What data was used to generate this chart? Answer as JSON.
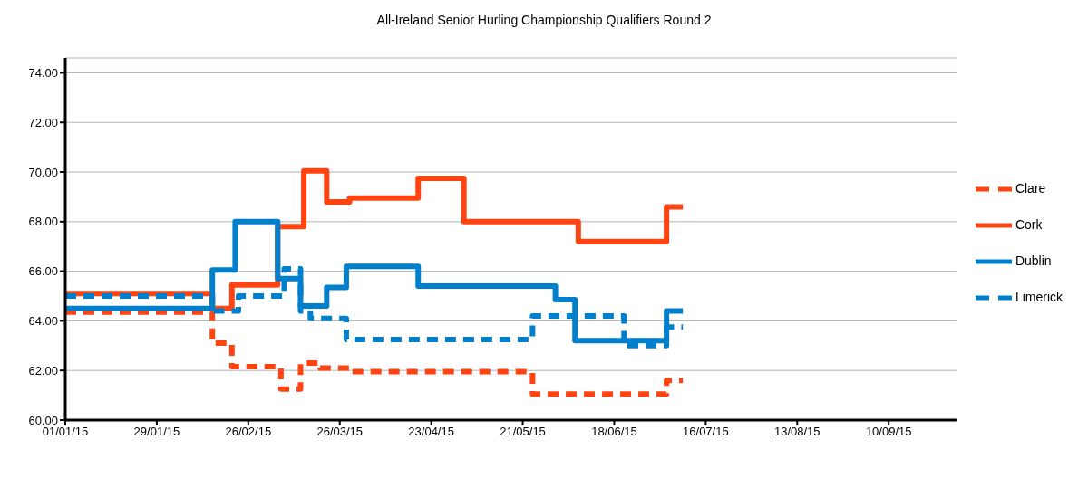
{
  "chart_data": {
    "type": "step",
    "title": "All-Ireland Senior Hurling Championship Qualifiers Round 2",
    "xlim": [
      "2015-01-01",
      "2015-10-01"
    ],
    "xticks": [
      {
        "value": "2015-01-01",
        "label": "01/01/15"
      },
      {
        "value": "2015-01-29",
        "label": "29/01/15"
      },
      {
        "value": "2015-02-26",
        "label": "26/02/15"
      },
      {
        "value": "2015-03-26",
        "label": "26/03/15"
      },
      {
        "value": "2015-04-23",
        "label": "23/04/15"
      },
      {
        "value": "2015-05-21",
        "label": "21/05/15"
      },
      {
        "value": "2015-06-18",
        "label": "18/06/15"
      },
      {
        "value": "2015-07-16",
        "label": "16/07/15"
      },
      {
        "value": "2015-08-13",
        "label": "13/08/15"
      },
      {
        "value": "2015-09-10",
        "label": "10/09/15"
      }
    ],
    "ylim": [
      60,
      74.6
    ],
    "yticks": [
      {
        "value": 60,
        "label": "60.00"
      },
      {
        "value": 62,
        "label": "62.00"
      },
      {
        "value": 64,
        "label": "64.00"
      },
      {
        "value": 66,
        "label": "66.00"
      },
      {
        "value": 68,
        "label": "68.00"
      },
      {
        "value": 70,
        "label": "70.00"
      },
      {
        "value": 72,
        "label": "72.00"
      },
      {
        "value": 74,
        "label": "74.00"
      }
    ],
    "grid": "y",
    "legend": "right",
    "marker": "none",
    "series": [
      {
        "name": "Clare",
        "color": "#ff4411",
        "line_style": "dashed",
        "x": [
          "2015-01-01",
          "2015-02-15",
          "2015-02-21",
          "2015-03-08",
          "2015-03-14",
          "2015-03-20",
          "2015-03-29",
          "2015-05-24",
          "2015-07-04",
          "2015-07-09"
        ],
        "values": [
          64.35,
          63.1,
          62.15,
          61.25,
          62.3,
          62.1,
          61.95,
          61.05,
          61.6,
          61.6
        ]
      },
      {
        "name": "Cork",
        "color": "#ff4411",
        "line_style": "solid",
        "x": [
          "2015-01-01",
          "2015-02-15",
          "2015-02-21",
          "2015-03-07",
          "2015-03-15",
          "2015-03-22",
          "2015-03-29",
          "2015-04-19",
          "2015-05-03",
          "2015-06-07",
          "2015-07-04",
          "2015-07-09"
        ],
        "values": [
          65.1,
          64.5,
          65.45,
          67.8,
          70.05,
          68.8,
          68.95,
          69.75,
          68.0,
          67.2,
          68.6,
          68.6
        ]
      },
      {
        "name": "Dublin",
        "color": "#0080cc",
        "line_style": "solid",
        "x": [
          "2015-01-01",
          "2015-02-15",
          "2015-02-22",
          "2015-03-07",
          "2015-03-14",
          "2015-03-22",
          "2015-03-28",
          "2015-04-19",
          "2015-05-31",
          "2015-06-06",
          "2015-07-04",
          "2015-07-09"
        ],
        "values": [
          64.5,
          66.05,
          68.0,
          65.7,
          64.6,
          65.35,
          66.2,
          65.4,
          64.85,
          63.2,
          64.4,
          64.4
        ]
      },
      {
        "name": "Limerick",
        "color": "#0080cc",
        "line_style": "dashed",
        "x": [
          "2015-01-01",
          "2015-02-15",
          "2015-02-23",
          "2015-03-09",
          "2015-03-14",
          "2015-03-17",
          "2015-03-28",
          "2015-05-24",
          "2015-06-21",
          "2015-07-04",
          "2015-07-09"
        ],
        "values": [
          65.0,
          64.4,
          65.0,
          66.1,
          64.4,
          64.1,
          63.25,
          64.2,
          63.0,
          63.75,
          63.75
        ]
      }
    ]
  }
}
